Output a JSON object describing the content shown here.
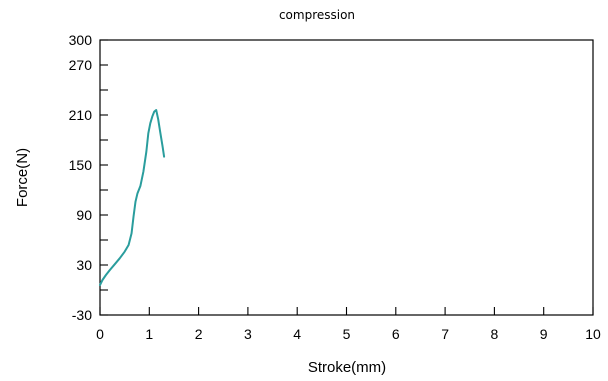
{
  "chart_data": {
    "type": "line",
    "title": "compression",
    "xlabel": "Stroke(mm)",
    "ylabel": "Force(N)",
    "xlim": [
      0,
      10
    ],
    "ylim": [
      -30,
      300
    ],
    "x_ticks": [
      0,
      1,
      2,
      3,
      4,
      5,
      6,
      7,
      8,
      9,
      10
    ],
    "x_tick_labels": [
      "0",
      "1",
      "2",
      "3",
      "4",
      "5",
      "6",
      "7",
      "8",
      "9",
      "10"
    ],
    "y_ticks": [
      -30,
      30,
      90,
      150,
      210,
      270,
      300
    ],
    "y_tick_labels": [
      "-30",
      "30",
      "90",
      "150",
      "210",
      "270",
      "300"
    ],
    "y_minor_ticks": [
      0,
      60,
      120,
      180,
      240
    ],
    "grid": false,
    "legend": "none",
    "series": [
      {
        "color": "#2a9d9d",
        "x": [
          0.0,
          0.05,
          0.12,
          0.2,
          0.3,
          0.4,
          0.5,
          0.58,
          0.64,
          0.68,
          0.72,
          0.76,
          0.82,
          0.88,
          0.94,
          0.98,
          1.02,
          1.06,
          1.1,
          1.14,
          1.18,
          1.22,
          1.27,
          1.3
        ],
        "y": [
          6,
          12,
          18,
          24,
          31,
          38,
          46,
          54,
          68,
          88,
          106,
          116,
          125,
          142,
          166,
          188,
          200,
          208,
          214,
          216,
          205,
          190,
          172,
          160
        ]
      }
    ]
  }
}
